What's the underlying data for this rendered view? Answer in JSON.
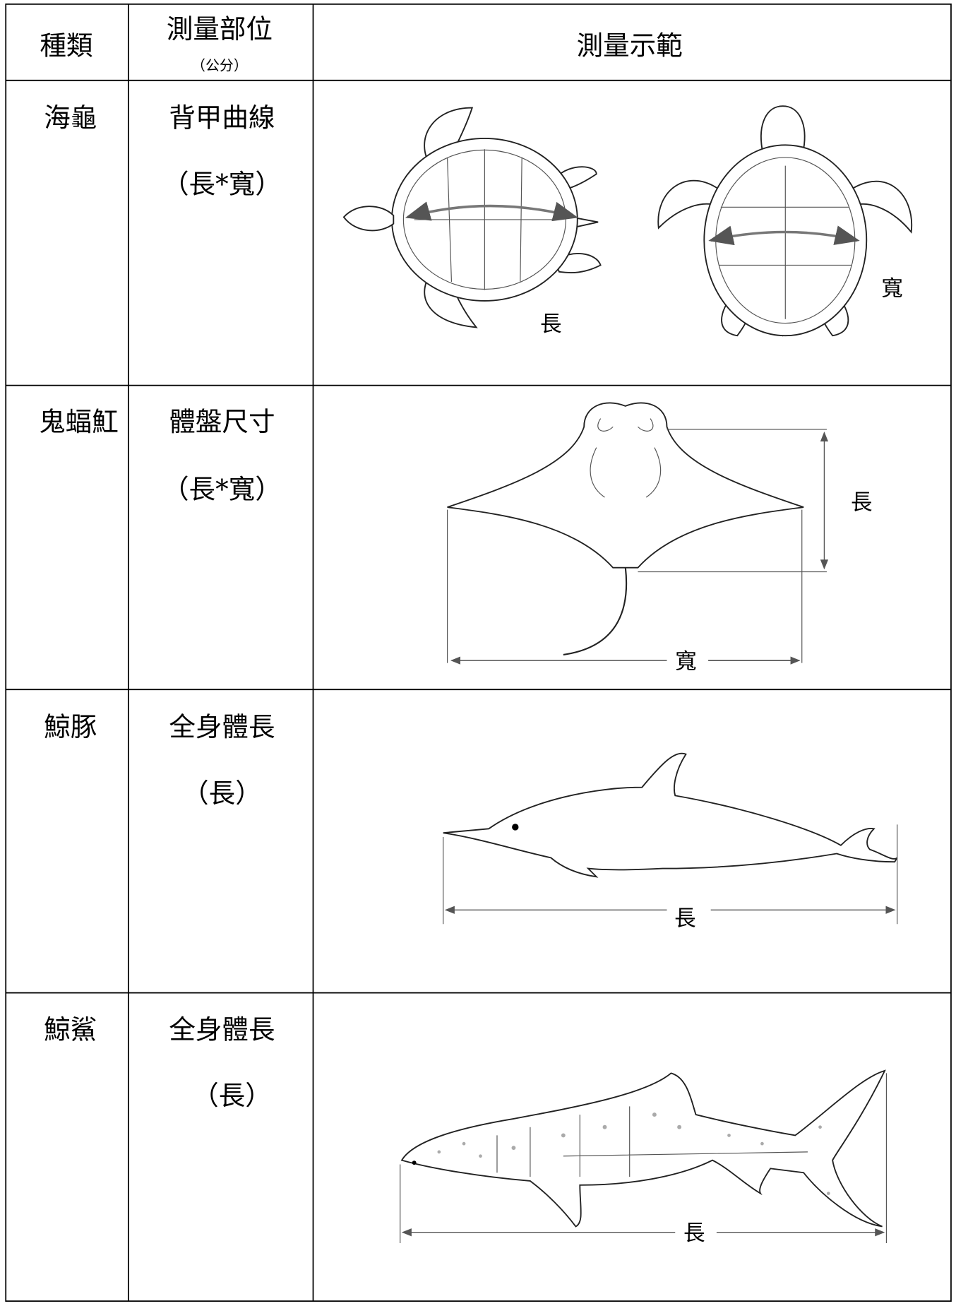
{
  "table": {
    "header": {
      "species": "種類",
      "part": "測量部位",
      "unit": "（公分）",
      "demo": "測量示範"
    },
    "rows": [
      {
        "species": "海龜",
        "part": "背甲曲線",
        "measure": "（長*寬）",
        "labels": [
          "長",
          "寬"
        ]
      },
      {
        "species": "鬼蝠魟",
        "part": "體盤尺寸",
        "measure": "（長*寬）",
        "labels": [
          "長",
          "寬"
        ]
      },
      {
        "species": "鯨豚",
        "part": "全身體長",
        "measure": "（長）",
        "labels": [
          "長"
        ]
      },
      {
        "species": "鯨鯊",
        "part": "全身體長",
        "measure": "（長）",
        "labels": [
          "長"
        ]
      }
    ]
  }
}
